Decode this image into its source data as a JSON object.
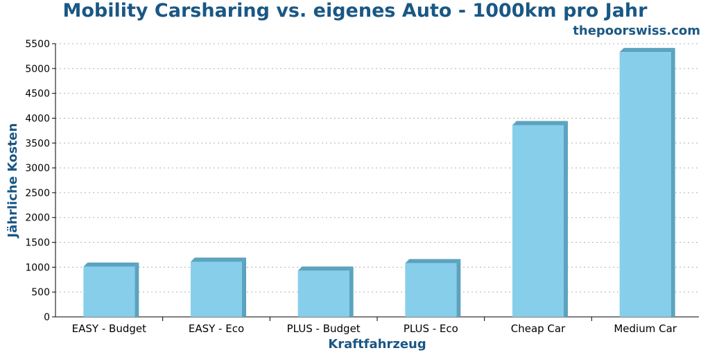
{
  "title": "Mobility Carsharing vs. eigenes Auto - 1000km pro Jahr",
  "brand": "thepoorswiss.com",
  "colors": {
    "bar_front": "#87ceeb",
    "bar_side": "#5ba3bf",
    "bar_top": "#5ba3bf",
    "title": "#1a5784",
    "grid": "#b0b0b0"
  },
  "chart_data": {
    "type": "bar",
    "title": "Mobility Carsharing vs. eigenes Auto - 1000km pro Jahr",
    "xlabel": "Kraftfahrzeug",
    "ylabel": "Jährliche Kosten",
    "categories": [
      "EASY - Budget",
      "EASY - Eco",
      "PLUS - Budget",
      "PLUS - Eco",
      "Cheap Car",
      "Medium Car"
    ],
    "values": [
      1010,
      1110,
      930,
      1080,
      3860,
      5330
    ],
    "ylim": [
      0,
      5500
    ],
    "yticks": [
      0,
      500,
      1000,
      1500,
      2000,
      2500,
      3000,
      3500,
      4000,
      4500,
      5000,
      5500
    ],
    "grid": true,
    "legend": "none"
  }
}
